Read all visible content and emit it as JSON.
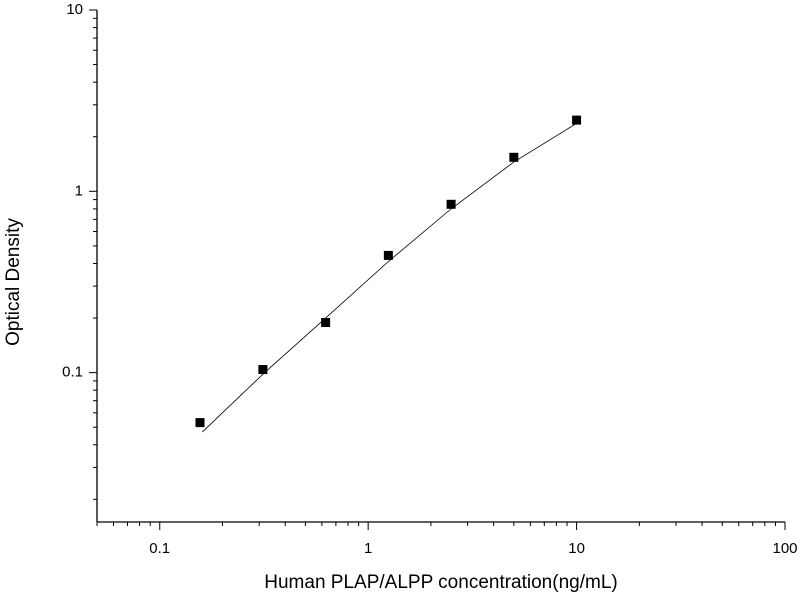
{
  "chart_data": {
    "type": "scatter",
    "x_label": "Human PLAP/ALPP concentration(ng/mL)",
    "y_label": "Optical Density",
    "x": [
      0.156,
      0.3125,
      0.625,
      1.25,
      2.5,
      5,
      10
    ],
    "series": [
      {
        "type": "scatter",
        "color": "#000000",
        "values": [
          0.053,
          0.104,
          0.189,
          0.443,
          0.848,
          1.54,
          2.47
        ]
      },
      {
        "type": "line",
        "color": "#000000",
        "x": [
          0.16,
          0.3125,
          0.625,
          1.25,
          2.5,
          5,
          10
        ],
        "values": [
          0.047,
          0.098,
          0.2,
          0.41,
          0.8,
          1.45,
          2.37
        ]
      }
    ],
    "log_x": true,
    "log_y": true,
    "xlim": [
      0.05,
      100
    ],
    "ylim": [
      0.015,
      10
    ],
    "xticks": [
      0.1,
      1,
      10,
      100
    ],
    "yticks": [
      0.1,
      1,
      10
    ],
    "xminorticks": [
      0.05,
      0.06,
      0.07,
      0.08,
      0.09,
      0.2,
      0.3,
      0.4,
      0.5,
      0.6,
      0.7,
      0.8,
      0.9,
      2,
      3,
      4,
      5,
      6,
      7,
      8,
      9,
      20,
      30,
      40,
      50,
      60,
      70,
      80,
      90
    ],
    "yminorticks": [
      0.02,
      0.03,
      0.04,
      0.05,
      0.06,
      0.07,
      0.08,
      0.09,
      0.2,
      0.3,
      0.4,
      0.5,
      0.6,
      0.7,
      0.8,
      0.9,
      2,
      3,
      4,
      5,
      6,
      7,
      8,
      9
    ]
  }
}
